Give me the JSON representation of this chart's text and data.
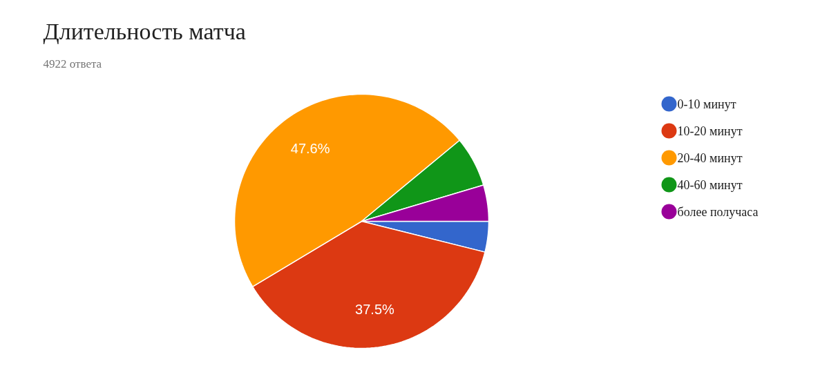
{
  "chart_data": {
    "type": "pie",
    "title": "Длительность матча",
    "subtitle": "4922 ответа",
    "categories": [
      "0-10 минут",
      "10-20 минут",
      "20-40 минут",
      "40-60 минут",
      "более получаса"
    ],
    "values": [
      3.9,
      37.5,
      47.6,
      6.4,
      4.6
    ],
    "colors": [
      "#3366cc",
      "#dc3912",
      "#ff9900",
      "#109618",
      "#990099"
    ],
    "value_labels": [
      null,
      "37.5%",
      "47.6%",
      null,
      null
    ],
    "legend": "right"
  }
}
